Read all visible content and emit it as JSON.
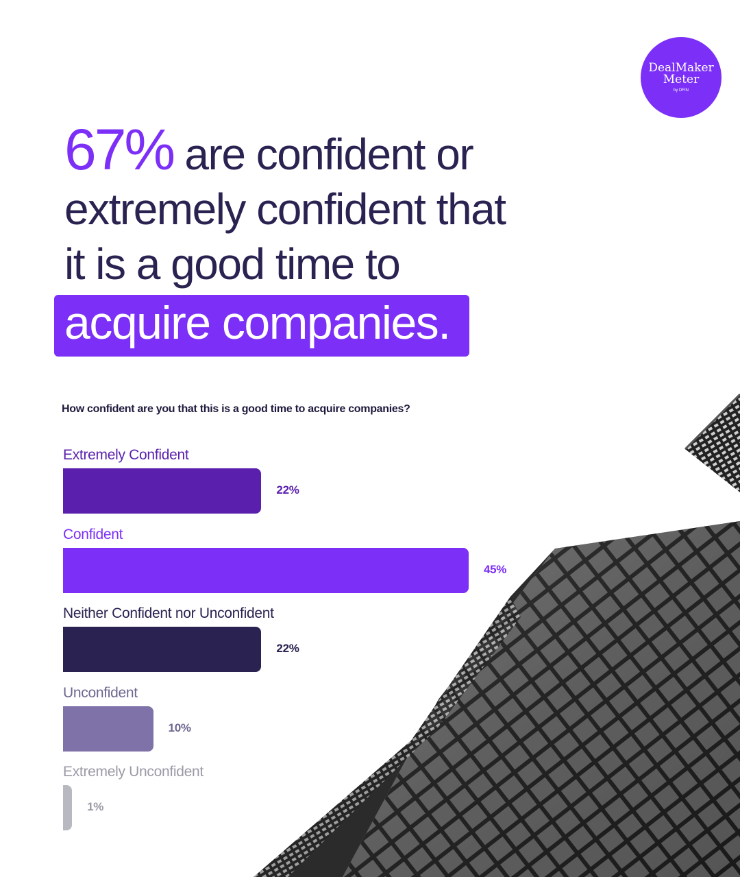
{
  "logo": {
    "line1": "DealMaker",
    "line2": "Meter",
    "line3": "by DFIN"
  },
  "headline": {
    "percent": "67%",
    "rest_line1": " are confident or",
    "line2": "extremely confident that",
    "line3": "it is a good time to",
    "highlight": "acquire companies."
  },
  "colors": {
    "accent": "#7b2ff7",
    "text_dark": "#2a2250"
  },
  "chart_data": {
    "type": "bar",
    "orientation": "horizontal",
    "title": "How confident are you that this is a good time to acquire companies?",
    "categories": [
      "Extremely Confident",
      "Confident",
      "Neither Confident nor Unconfident",
      "Unconfident",
      "Extremely Unconfident"
    ],
    "values": [
      22,
      45,
      22,
      10,
      1
    ],
    "value_labels": [
      "22%",
      "45%",
      "22%",
      "10%",
      "1%"
    ],
    "colors": [
      "#5a1fad",
      "#7b2ff7",
      "#2a2250",
      "#7e72a8",
      "#b8b8c0"
    ],
    "label_colors": [
      "#5a1fad",
      "#7b2ff7",
      "#2a2250",
      "#6e6690",
      "#9a9aa6"
    ],
    "grid": false
  }
}
